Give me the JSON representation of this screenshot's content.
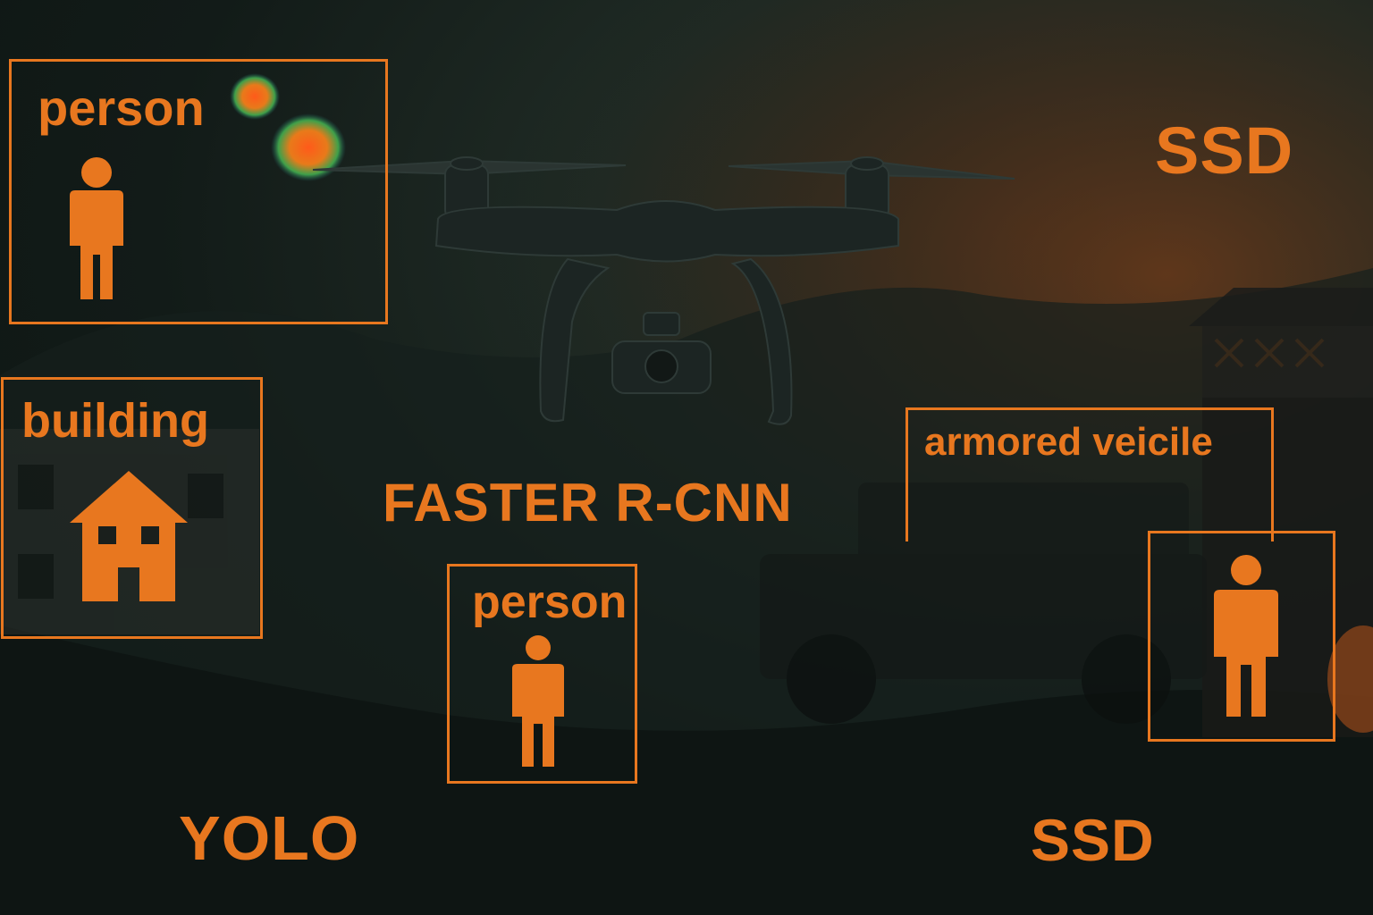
{
  "colors": {
    "accent": "#e8771f",
    "background": "#121b18",
    "drone": "#1c2523"
  },
  "detections": [
    {
      "label": "person",
      "icon": "person-icon"
    },
    {
      "label": "building",
      "icon": "house-icon"
    },
    {
      "label": "person",
      "icon": "person-icon"
    },
    {
      "label": "armored veicile",
      "icon": ""
    },
    {
      "label": "",
      "icon": "person-icon"
    }
  ],
  "models": {
    "top_right": "SSD",
    "center": "FASTER R-CNN",
    "bottom_left": "YOLO",
    "bottom_right": "SSD"
  }
}
